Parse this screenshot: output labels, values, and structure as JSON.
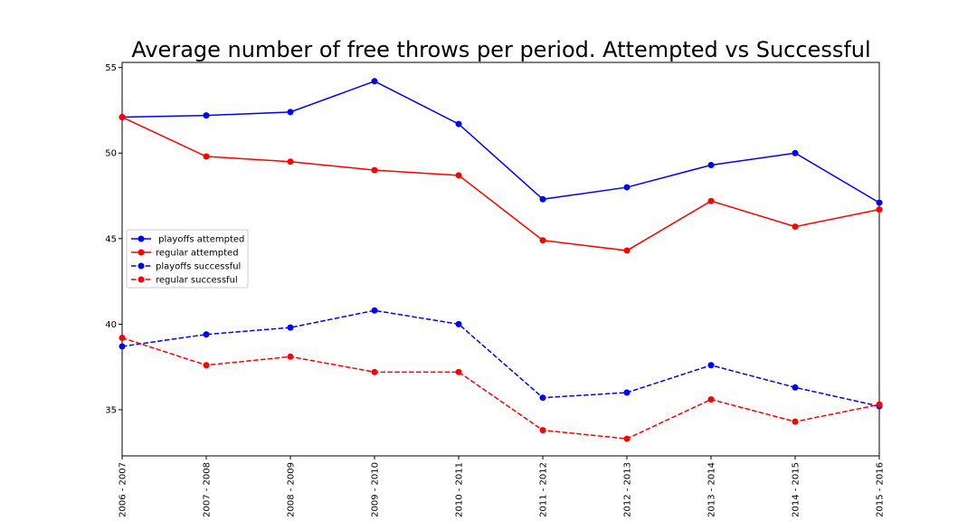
{
  "chart_data": {
    "type": "line",
    "title": "Average number of free throws per period. Attempted vs Successful",
    "xlabel": "",
    "ylabel": "",
    "categories": [
      "2006 - 2007",
      "2007 - 2008",
      "2008 - 2009",
      "2009 - 2010",
      "2010 - 2011",
      "2011 - 2012",
      "2012 - 2013",
      "2013 - 2014",
      "2014 - 2015",
      "2015 - 2016"
    ],
    "ylim": [
      32.3,
      55.3
    ],
    "yticks": [
      35,
      40,
      45,
      50,
      55
    ],
    "grid": false,
    "legend_position": "center-left",
    "series": [
      {
        "name": " playoffs attempted",
        "color": "#0000ff",
        "linestyle": "solid",
        "values": [
          52.1,
          52.2,
          52.4,
          54.2,
          51.7,
          47.3,
          48.0,
          49.3,
          50.0,
          47.1
        ]
      },
      {
        "name": "regular attempted",
        "color": "#ff0000",
        "linestyle": "solid",
        "values": [
          52.1,
          49.8,
          49.5,
          49.0,
          48.7,
          44.9,
          44.3,
          47.2,
          45.7,
          46.7
        ]
      },
      {
        "name": "playoffs successful",
        "color": "#0000ff",
        "linestyle": "dashed",
        "values": [
          38.7,
          39.4,
          39.8,
          40.8,
          40.0,
          35.7,
          36.0,
          37.6,
          36.3,
          35.2
        ]
      },
      {
        "name": "regular successful",
        "color": "#ff0000",
        "linestyle": "dashed",
        "values": [
          39.2,
          37.6,
          38.1,
          37.2,
          37.2,
          33.8,
          33.3,
          35.6,
          34.3,
          35.3
        ]
      }
    ]
  }
}
